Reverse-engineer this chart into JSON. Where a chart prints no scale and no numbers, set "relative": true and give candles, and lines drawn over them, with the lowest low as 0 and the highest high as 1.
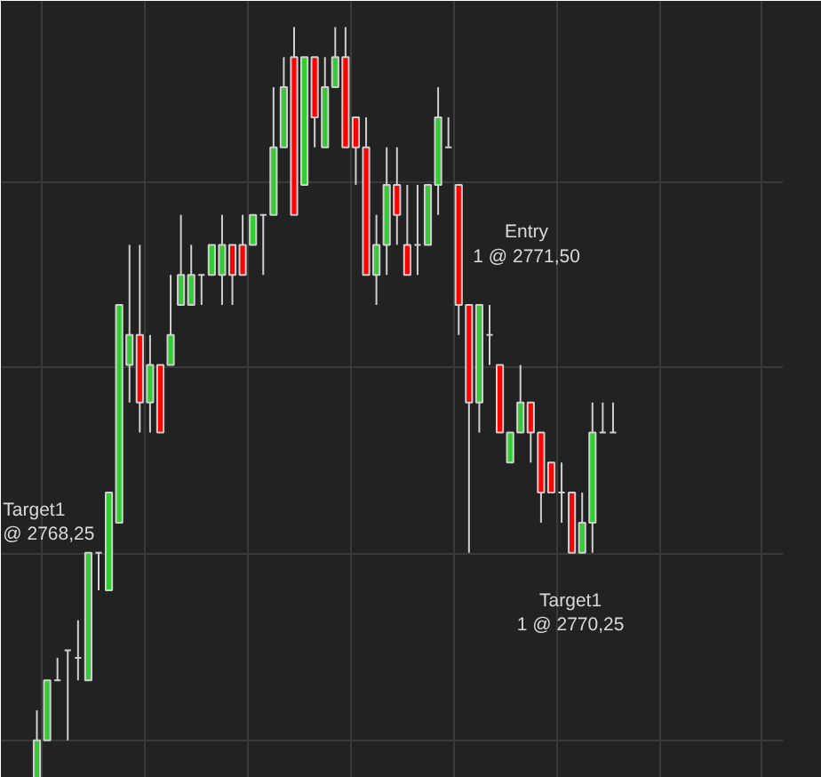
{
  "chart_data": {
    "type": "candlestick",
    "relative": true,
    "grid": true,
    "categories": [
      null,
      null,
      null,
      null,
      null,
      null,
      null,
      null,
      null,
      null,
      null,
      null,
      null,
      null,
      null,
      null,
      null,
      null,
      null,
      null,
      null,
      null,
      null,
      null,
      null,
      null,
      null,
      null,
      null,
      null,
      null,
      null,
      null,
      null,
      null,
      null,
      null,
      null,
      null,
      null,
      null,
      null,
      null,
      null,
      null,
      null,
      null,
      null,
      null,
      null,
      null,
      null,
      null,
      null,
      null,
      null,
      null
    ],
    "ohlc": [
      [
        0,
        0.09,
        0,
        0.05
      ],
      [
        0.05,
        0.13,
        0.05,
        0.13
      ],
      [
        0.13,
        0.16,
        0.13,
        0.13
      ],
      [
        0.17,
        0.17,
        0.05,
        0.17
      ],
      [
        0.16,
        0.21,
        0.13,
        0.16
      ],
      [
        0.13,
        0.3,
        0.13,
        0.3
      ],
      [
        0.3,
        0.3,
        0.25,
        0.3
      ],
      [
        0.25,
        0.38,
        0.25,
        0.38
      ],
      [
        0.34,
        0.63,
        0.34,
        0.63
      ],
      [
        0.55,
        0.71,
        0.5,
        0.59
      ],
      [
        0.59,
        0.71,
        0.46,
        0.5
      ],
      [
        0.5,
        0.59,
        0.46,
        0.55
      ],
      [
        0.55,
        0.55,
        0.46,
        0.46
      ],
      [
        0.55,
        0.67,
        0.55,
        0.59
      ],
      [
        0.63,
        0.75,
        0.63,
        0.67
      ],
      [
        0.63,
        0.71,
        0.63,
        0.67
      ],
      [
        0.67,
        0.67,
        0.63,
        0.67
      ],
      [
        0.67,
        0.71,
        0.67,
        0.71
      ],
      [
        0.67,
        0.75,
        0.63,
        0.71
      ],
      [
        0.71,
        0.71,
        0.63,
        0.67
      ],
      [
        0.71,
        0.75,
        0.67,
        0.67
      ],
      [
        0.71,
        0.75,
        0.71,
        0.75
      ],
      [
        0.75,
        0.75,
        0.67,
        0.75
      ],
      [
        0.75,
        0.92,
        0.75,
        0.84
      ],
      [
        0.84,
        0.96,
        0.84,
        0.92
      ],
      [
        0.96,
        1,
        0.75,
        0.75
      ],
      [
        0.79,
        0.96,
        0.79,
        0.96
      ],
      [
        0.96,
        0.96,
        0.84,
        0.88
      ],
      [
        0.84,
        0.96,
        0.84,
        0.92
      ],
      [
        0.92,
        1,
        0.92,
        0.96
      ],
      [
        0.96,
        1,
        0.84,
        0.84
      ],
      [
        0.88,
        0.88,
        0.79,
        0.84
      ],
      [
        0.84,
        0.88,
        0.67,
        0.67
      ],
      [
        0.67,
        0.75,
        0.63,
        0.71
      ],
      [
        0.71,
        0.84,
        0.67,
        0.79
      ],
      [
        0.79,
        0.84,
        0.71,
        0.75
      ],
      [
        0.71,
        0.79,
        0.67,
        0.67
      ],
      [
        0.71,
        0.79,
        0.67,
        0.71
      ],
      [
        0.71,
        0.79,
        0.71,
        0.79
      ],
      [
        0.79,
        0.92,
        0.75,
        0.88
      ],
      [
        0.84,
        0.88,
        0.84,
        0.84
      ],
      [
        0.79,
        0.79,
        0.59,
        0.63
      ],
      [
        0.63,
        0.63,
        0.3,
        0.5
      ],
      [
        0.5,
        0.63,
        0.46,
        0.63
      ],
      [
        0.59,
        0.63,
        0.55,
        0.59
      ],
      [
        0.55,
        0.55,
        0.46,
        0.46
      ],
      [
        0.42,
        0.46,
        0.42,
        0.46
      ],
      [
        0.46,
        0.55,
        0.46,
        0.5
      ],
      [
        0.5,
        0.5,
        0.42,
        0.46
      ],
      [
        0.46,
        0.46,
        0.34,
        0.38
      ],
      [
        0.42,
        0.42,
        0.38,
        0.38
      ],
      [
        0.38,
        0.42,
        0.34,
        0.38
      ],
      [
        0.38,
        0.38,
        0.3,
        0.3
      ],
      [
        0.3,
        0.38,
        0.3,
        0.34
      ],
      [
        0.34,
        0.5,
        0.3,
        0.46
      ],
      [
        0.46,
        0.5,
        0.46,
        0.46
      ],
      [
        0.46,
        0.5,
        0.46,
        0.46
      ]
    ],
    "colors": [
      "#33cc33",
      "#33cc33",
      "#cfcfcf",
      "#cfcfcf",
      "#cfcfcf",
      "#33cc33",
      "#cfcfcf",
      "#33cc33",
      "#33cc33",
      "#33cc33",
      "#ff0000",
      "#33cc33",
      "#ff0000",
      "#33cc33",
      "#33cc33",
      "#33cc33",
      "#cfcfcf",
      "#33cc33",
      "#33cc33",
      "#ff0000",
      "#ff0000",
      "#33cc33",
      "#cfcfcf",
      "#33cc33",
      "#33cc33",
      "#ff0000",
      "#33cc33",
      "#ff0000",
      "#33cc33",
      "#33cc33",
      "#ff0000",
      "#ff0000",
      "#ff0000",
      "#33cc33",
      "#33cc33",
      "#ff0000",
      "#ff0000",
      "#cfcfcf",
      "#33cc33",
      "#33cc33",
      "#cfcfcf",
      "#ff0000",
      "#ff0000",
      "#33cc33",
      "#cfcfcf",
      "#ff0000",
      "#33cc33",
      "#33cc33",
      "#ff0000",
      "#ff0000",
      "#ff0000",
      "#cfcfcf",
      "#ff0000",
      "#33cc33",
      "#33cc33",
      "#cfcfcf",
      "#cfcfcf"
    ],
    "annotations": [
      "Target1\n@ 2768,25",
      "Entry\n1 @ 2771,50",
      "Target1\n1 @ 2770,25"
    ]
  }
}
